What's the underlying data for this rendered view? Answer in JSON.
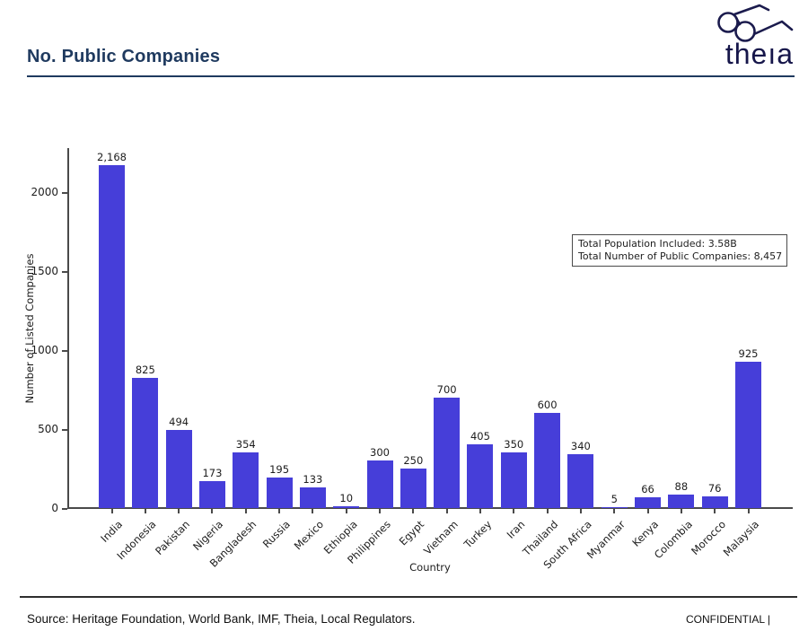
{
  "header": {
    "title": "No. Public Companies"
  },
  "logo": {
    "text": "theıa",
    "color": "#16164a"
  },
  "chart_data": {
    "type": "bar",
    "title": "No. Public Companies",
    "xlabel": "Country",
    "ylabel": "Number of Listed Companies",
    "categories": [
      "India",
      "Indonesia",
      "Pakistan",
      "Nigeria",
      "Bangladesh",
      "Russia",
      "Mexico",
      "Ethiopia",
      "Philippines",
      "Egypt",
      "Vietnam",
      "Turkey",
      "Iran",
      "Thailand",
      "South Africa",
      "Myanmar",
      "Kenya",
      "Colombia",
      "Morocco",
      "Malaysia"
    ],
    "values": [
      2168,
      825,
      494,
      173,
      354,
      195,
      133,
      10,
      300,
      250,
      700,
      405,
      350,
      600,
      340,
      5,
      66,
      88,
      76,
      925
    ],
    "value_labels": [
      "2,168",
      "825",
      "494",
      "173",
      "354",
      "195",
      "133",
      "10",
      "300",
      "250",
      "700",
      "405",
      "350",
      "600",
      "340",
      "5",
      "66",
      "88",
      "76",
      "925"
    ],
    "yticks": [
      0,
      500,
      1000,
      1500,
      2000
    ],
    "ylim": [
      0,
      2284
    ],
    "bar_color": "#463ed9",
    "grid": "off",
    "annotation": {
      "lines": [
        "Total Population Included: 3.58B",
        "Total Number of Public Companies: 8,457"
      ]
    }
  },
  "footer": {
    "source": "Source: Heritage Foundation, World Bank, IMF, Theia, Local Regulators.",
    "confidential": "CONFIDENTIAL |"
  }
}
